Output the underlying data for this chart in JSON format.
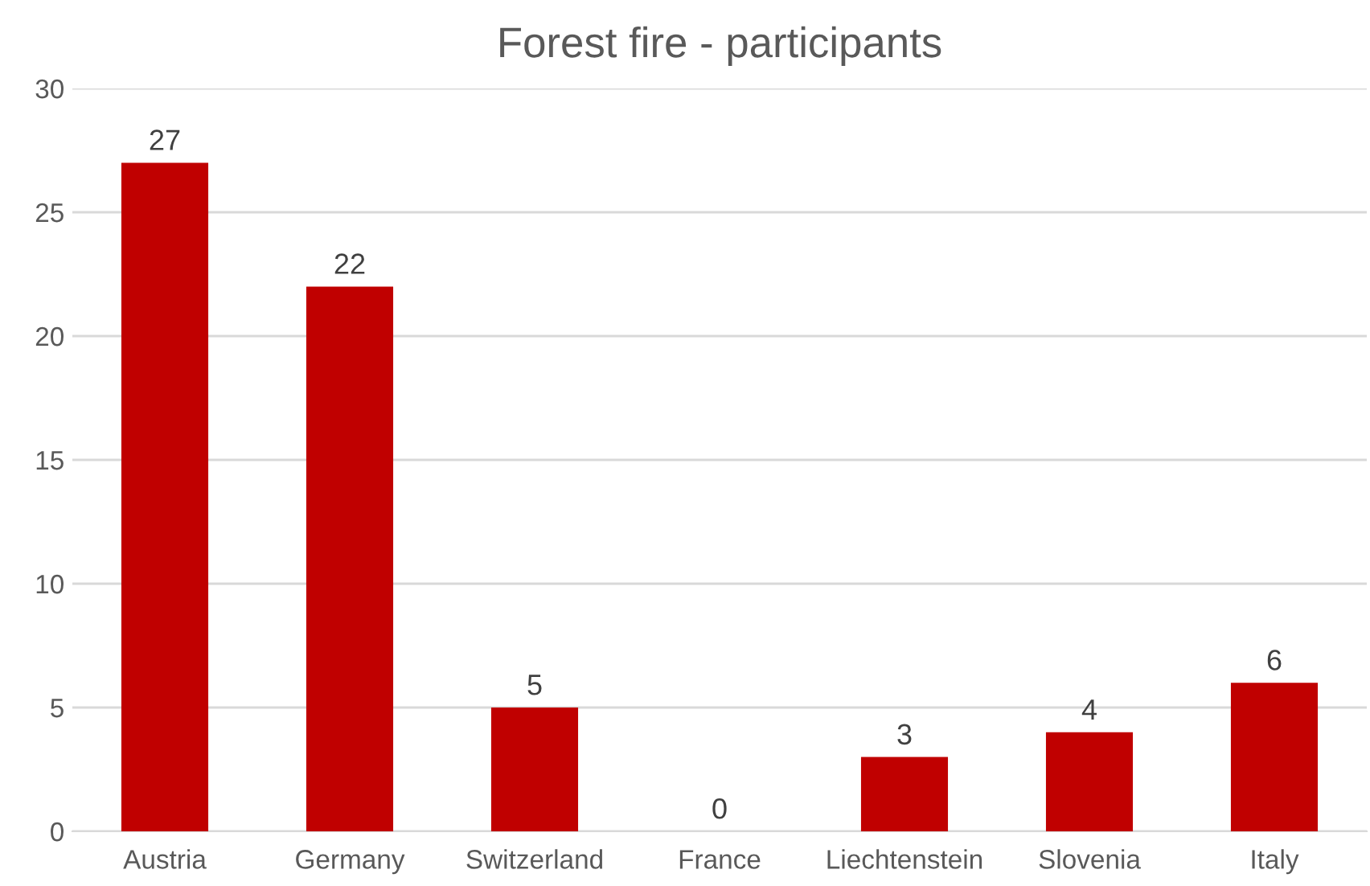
{
  "chart_data": {
    "type": "bar",
    "title": "Forest fire - participants",
    "categories": [
      "Austria",
      "Germany",
      "Switzerland",
      "France",
      "Liechtenstein",
      "Slovenia",
      "Italy"
    ],
    "values": [
      27,
      22,
      5,
      0,
      3,
      4,
      6
    ],
    "color": "#c00000",
    "ylim": [
      0,
      30
    ],
    "yticks": [
      0,
      5,
      10,
      15,
      20,
      25,
      30
    ],
    "grid": "y",
    "data_labels": true
  }
}
